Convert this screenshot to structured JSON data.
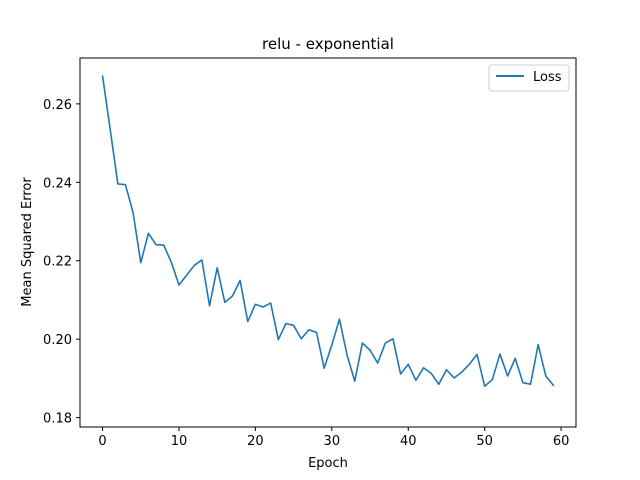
{
  "chart_data": {
    "type": "line",
    "title": "relu - exponential",
    "xlabel": "Epoch",
    "ylabel": "Mean Squared Error",
    "xlim": [
      -2.95,
      61.95
    ],
    "ylim": [
      0.1776,
      0.2717
    ],
    "xticks": [
      0,
      10,
      20,
      30,
      40,
      50,
      60
    ],
    "yticks": [
      0.18,
      0.2,
      0.22,
      0.24,
      0.26
    ],
    "ytick_labels": [
      "0.18",
      "0.20",
      "0.22",
      "0.24",
      "0.26"
    ],
    "grid": false,
    "legend_position": "upper right",
    "series": [
      {
        "name": "Loss",
        "color": "#1f77b4",
        "x": [
          0,
          1,
          2,
          3,
          4,
          5,
          6,
          7,
          8,
          9,
          10,
          11,
          12,
          13,
          14,
          15,
          16,
          17,
          18,
          19,
          20,
          21,
          22,
          23,
          24,
          25,
          26,
          27,
          28,
          29,
          30,
          31,
          32,
          33,
          34,
          35,
          36,
          37,
          38,
          39,
          40,
          41,
          42,
          43,
          44,
          45,
          46,
          47,
          48,
          49,
          50,
          51,
          52,
          53,
          54,
          55,
          56,
          57,
          58,
          59
        ],
        "values": [
          0.2671,
          0.2535,
          0.2396,
          0.2394,
          0.2322,
          0.2195,
          0.227,
          0.2241,
          0.224,
          0.2196,
          0.2138,
          0.2163,
          0.2188,
          0.2202,
          0.2085,
          0.2182,
          0.2094,
          0.211,
          0.215,
          0.2045,
          0.2089,
          0.2082,
          0.2092,
          0.1999,
          0.204,
          0.2035,
          0.2001,
          0.2024,
          0.2017,
          0.1926,
          0.1985,
          0.2051,
          0.1959,
          0.1893,
          0.199,
          0.1972,
          0.1939,
          0.199,
          0.2001,
          0.1911,
          0.1936,
          0.1895,
          0.1927,
          0.1913,
          0.1885,
          0.1922,
          0.1901,
          0.1916,
          0.1936,
          0.1961,
          0.188,
          0.1897,
          0.1962,
          0.1906,
          0.1951,
          0.1889,
          0.1885,
          0.1986,
          0.1906,
          0.1882
        ]
      }
    ]
  }
}
